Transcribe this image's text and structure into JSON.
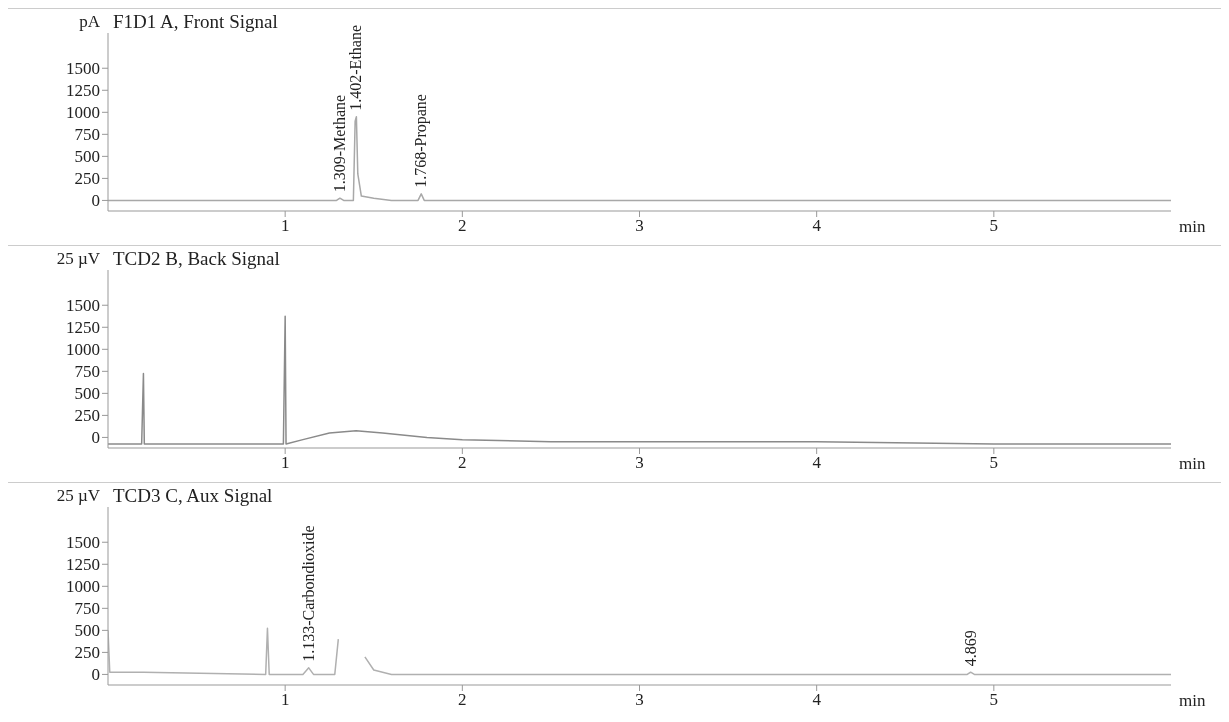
{
  "chart_data": [
    {
      "type": "line",
      "title": "F1D1 A, Front Signal",
      "ylabel": "pA",
      "xlabel": "min",
      "xlim": [
        0,
        6
      ],
      "xticks": [
        1,
        2,
        3,
        4,
        5
      ],
      "ylim": [
        -120,
        1900
      ],
      "yticks": [
        0,
        250,
        500,
        750,
        1000,
        1250,
        1500
      ],
      "grid": false,
      "legend": false,
      "marker": "none",
      "series": [
        {
          "color": "#a8a8a8",
          "x": [
            0,
            1.0,
            1.29,
            1.309,
            1.33,
            1.385,
            1.395,
            1.402,
            1.41,
            1.43,
            1.5,
            1.6,
            1.75,
            1.768,
            1.785,
            2.0,
            3,
            4,
            5,
            6
          ],
          "values": [
            0,
            0,
            0,
            25,
            0,
            0,
            900,
            950,
            300,
            50,
            25,
            0,
            0,
            75,
            0,
            0,
            0,
            0,
            0,
            0
          ]
        }
      ],
      "annotations": [
        {
          "text": "1.309-Methane",
          "x": 1.309,
          "y": 25
        },
        {
          "text": "1.402-Ethane",
          "x": 1.402,
          "y": 950
        },
        {
          "text": "1.768-Propane",
          "x": 1.768,
          "y": 75
        }
      ]
    },
    {
      "type": "line",
      "title": "TCD2 B, Back Signal",
      "ylabel": "25 µV",
      "xlabel": "min",
      "xlim": [
        0,
        6
      ],
      "xticks": [
        1,
        2,
        3,
        4,
        5
      ],
      "ylim": [
        -120,
        1900
      ],
      "yticks": [
        0,
        250,
        500,
        750,
        1000,
        1250,
        1500
      ],
      "grid": false,
      "legend": false,
      "marker": "none",
      "series": [
        {
          "color": "#8a8a8a",
          "x": [
            0,
            0.19,
            0.2,
            0.205,
            0.99,
            1.0,
            1.005,
            1.1,
            1.25,
            1.4,
            1.55,
            1.8,
            2.0,
            2.5,
            3,
            4,
            5,
            6
          ],
          "values": [
            -75,
            -75,
            725,
            -75,
            -75,
            1375,
            -75,
            -25,
            50,
            75,
            50,
            0,
            -25,
            -50,
            -50,
            -50,
            -75,
            -75
          ]
        }
      ]
    },
    {
      "type": "line",
      "title": "TCD3 C, Aux Signal",
      "ylabel": "25 µV",
      "xlabel": "min",
      "xlim": [
        0,
        6
      ],
      "xticks": [
        1,
        2,
        3,
        4,
        5
      ],
      "ylim": [
        -120,
        1900
      ],
      "yticks": [
        0,
        250,
        500,
        750,
        1000,
        1250,
        1500
      ],
      "grid": false,
      "legend": false,
      "marker": "none",
      "series": [
        {
          "color": "#b0b0b0",
          "x": [
            0,
            0.01,
            0.2,
            0.89,
            0.9,
            0.91,
            1.1,
            1.133,
            1.16,
            1.28,
            1.3,
            1.31,
            1.33,
            1.37,
            1.45,
            1.5,
            1.6,
            2,
            4.85,
            4.869,
            4.89,
            6
          ],
          "values": [
            500,
            25,
            25,
            0,
            525,
            0,
            0,
            75,
            0,
            0,
            400,
            null,
            null,
            null,
            200,
            50,
            0,
            0,
            0,
            25,
            0,
            0
          ]
        }
      ],
      "annotations": [
        {
          "text": "1.133-Carbondioxide",
          "x": 1.133,
          "y": 75
        },
        {
          "text": "4.869",
          "x": 4.869,
          "y": 25
        }
      ]
    }
  ]
}
